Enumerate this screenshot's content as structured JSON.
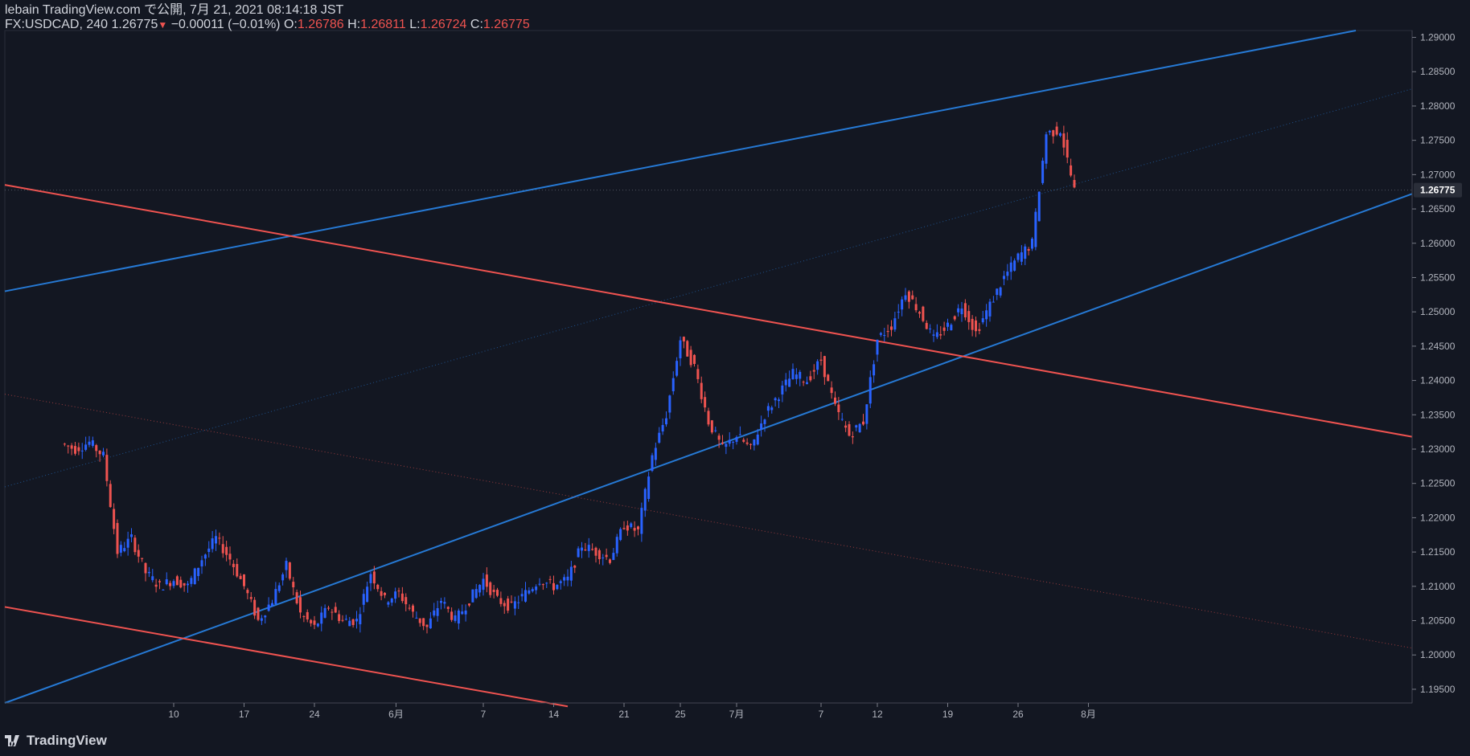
{
  "header": {
    "publisher": "lebain TradingView.com で公開, 7月 21, 2021 08:14:18 JST",
    "symbol": "FX:USDCAD, 240",
    "last": "1.26775",
    "change": "−0.00011 (−0.01%)",
    "o_label": "O:",
    "o_value": "1.26786",
    "h_label": "H:",
    "h_value": "1.26811",
    "l_label": "L:",
    "l_value": "1.26724",
    "c_label": "C:",
    "c_value": "1.26775"
  },
  "footer": {
    "brand": "TradingView",
    "logo_icon": "tradingview-logo-icon"
  },
  "colors": {
    "background": "#131722",
    "up": "#2962ff",
    "down": "#ef5350",
    "channel_blue": "#2679d4",
    "channel_red": "#ef5350",
    "axis_text": "#b2b5be",
    "price_label_bg": "#131722"
  },
  "chart_data": {
    "type": "candlestick",
    "symbol": "USDCAD",
    "timeframe": "240",
    "ylim": [
      1.193,
      1.291
    ],
    "y_ticks": [
      "1.29000",
      "1.28500",
      "1.28000",
      "1.27500",
      "1.27000",
      "1.26500",
      "1.26000",
      "1.25500",
      "1.25000",
      "1.24500",
      "1.24000",
      "1.23500",
      "1.23000",
      "1.22500",
      "1.22000",
      "1.21500",
      "1.21000",
      "1.20500",
      "1.20000",
      "1.19500"
    ],
    "current_price_label": "1.26775",
    "x_ticks": [
      {
        "label": "10",
        "x": 12
      },
      {
        "label": "17",
        "x": 17
      },
      {
        "label": "24",
        "x": 22
      },
      {
        "label": "6月",
        "x": 27.8
      },
      {
        "label": "7",
        "x": 34
      },
      {
        "label": "14",
        "x": 39
      },
      {
        "label": "21",
        "x": 44
      },
      {
        "label": "25",
        "x": 48
      },
      {
        "label": "7月",
        "x": 52
      },
      {
        "label": "7",
        "x": 58
      },
      {
        "label": "12",
        "x": 62
      },
      {
        "label": "19",
        "x": 67
      },
      {
        "label": "26",
        "x": 72
      },
      {
        "label": "8月",
        "x": 77
      }
    ],
    "price_series": [
      [
        5,
        1.23
      ],
      [
        6,
        1.231
      ],
      [
        7,
        1.229
      ],
      [
        8,
        1.215
      ],
      [
        9,
        1.217
      ],
      [
        10,
        1.212
      ],
      [
        11,
        1.21
      ],
      [
        12,
        1.211
      ],
      [
        13,
        1.21
      ],
      [
        14,
        1.214
      ],
      [
        15,
        1.217
      ],
      [
        16,
        1.214
      ],
      [
        17,
        1.21
      ],
      [
        18,
        1.205
      ],
      [
        19,
        1.208
      ],
      [
        20,
        1.213
      ],
      [
        21,
        1.206
      ],
      [
        22,
        1.204
      ],
      [
        23,
        1.207
      ],
      [
        24,
        1.205
      ],
      [
        25,
        1.205
      ],
      [
        26,
        1.212
      ],
      [
        27,
        1.208
      ],
      [
        28,
        1.209
      ],
      [
        29,
        1.206
      ],
      [
        30,
        1.204
      ],
      [
        31,
        1.208
      ],
      [
        32,
        1.205
      ],
      [
        33,
        1.208
      ],
      [
        34,
        1.211
      ],
      [
        35,
        1.208
      ],
      [
        36,
        1.207
      ],
      [
        37,
        1.209
      ],
      [
        38,
        1.211
      ],
      [
        39,
        1.21
      ],
      [
        40,
        1.211
      ],
      [
        41,
        1.216
      ],
      [
        42,
        1.215
      ],
      [
        43,
        1.214
      ],
      [
        44,
        1.219
      ],
      [
        45,
        1.218
      ],
      [
        46,
        1.229
      ],
      [
        47,
        1.235
      ],
      [
        48,
        1.246
      ],
      [
        49,
        1.242
      ],
      [
        50,
        1.234
      ],
      [
        51,
        1.23
      ],
      [
        52,
        1.232
      ],
      [
        53,
        1.23
      ],
      [
        54,
        1.235
      ],
      [
        55,
        1.238
      ],
      [
        56,
        1.241
      ],
      [
        57,
        1.24
      ],
      [
        58,
        1.243
      ],
      [
        59,
        1.236
      ],
      [
        60,
        1.232
      ],
      [
        61,
        1.234
      ],
      [
        62,
        1.246
      ],
      [
        63,
        1.248
      ],
      [
        64,
        1.253
      ],
      [
        65,
        1.25
      ],
      [
        66,
        1.246
      ],
      [
        67,
        1.248
      ],
      [
        68,
        1.251
      ],
      [
        69,
        1.247
      ],
      [
        70,
        1.251
      ],
      [
        71,
        1.255
      ],
      [
        72,
        1.258
      ],
      [
        73,
        1.26
      ],
      [
        74,
        1.276
      ],
      [
        75,
        1.2765
      ],
      [
        76,
        1.2677
      ]
    ],
    "lines": [
      {
        "name": "ascending-channel-upper",
        "color": "blue",
        "points": [
          [
            0,
            1.253
          ],
          [
            96,
            1.291
          ]
        ]
      },
      {
        "name": "ascending-channel-lower",
        "color": "blue",
        "points": [
          [
            0,
            1.193
          ],
          [
            100,
            1.2672
          ]
        ]
      },
      {
        "name": "descending-channel-upper",
        "color": "red",
        "points": [
          [
            0,
            1.2685
          ],
          [
            100,
            1.2318
          ]
        ]
      },
      {
        "name": "descending-channel-lower",
        "color": "red",
        "points": [
          [
            0,
            1.207
          ],
          [
            40,
            1.1925
          ]
        ]
      },
      {
        "name": "ascending-channel-midline",
        "color": "blue-dotted",
        "points": [
          [
            0,
            1.2245
          ],
          [
            100,
            1.2825
          ]
        ]
      },
      {
        "name": "descending-channel-midline",
        "color": "red-dotted",
        "points": [
          [
            0,
            1.238
          ],
          [
            100,
            1.201
          ]
        ]
      }
    ]
  }
}
